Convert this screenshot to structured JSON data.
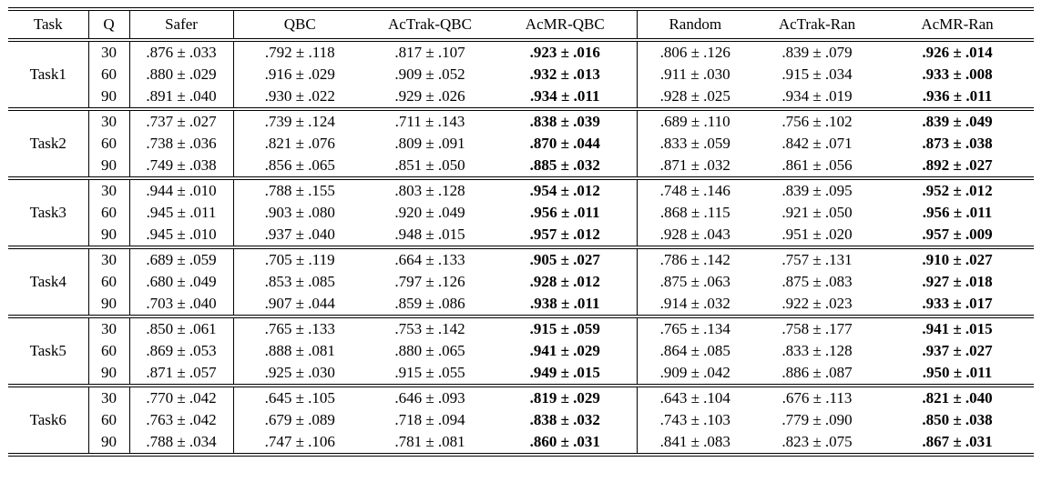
{
  "table": {
    "columns": [
      "Task",
      "Q",
      "Safer",
      "QBC",
      "AcTrak-QBC",
      "AcMR-QBC",
      "Random",
      "AcTrak-Ran",
      "AcMR-Ran"
    ],
    "bold_columns": [
      "AcMR-QBC",
      "AcMR-Ran"
    ],
    "text_color": "#000000",
    "rule_color": "#000000",
    "groups": [
      {
        "task": "Task1",
        "rows": [
          [
            "30",
            ".876 ± .033",
            ".792 ± .118",
            ".817 ± .107",
            ".923 ± .016",
            ".806 ± .126",
            ".839 ± .079",
            ".926 ± .014"
          ],
          [
            "60",
            ".880 ± .029",
            ".916 ± .029",
            ".909 ± .052",
            ".932 ± .013",
            ".911 ± .030",
            ".915 ± .034",
            ".933 ± .008"
          ],
          [
            "90",
            ".891 ± .040",
            ".930 ± .022",
            ".929 ± .026",
            ".934 ± .011",
            ".928 ± .025",
            ".934 ± .019",
            ".936 ± .011"
          ]
        ]
      },
      {
        "task": "Task2",
        "rows": [
          [
            "30",
            ".737 ± .027",
            ".739 ± .124",
            ".711 ± .143",
            ".838 ± .039",
            ".689 ± .110",
            ".756 ± .102",
            ".839 ± .049"
          ],
          [
            "60",
            ".738 ± .036",
            ".821 ± .076",
            ".809 ± .091",
            ".870 ± .044",
            ".833 ± .059",
            ".842 ± .071",
            ".873 ± .038"
          ],
          [
            "90",
            ".749 ± .038",
            ".856 ± .065",
            ".851 ± .050",
            ".885 ± .032",
            ".871 ± .032",
            ".861 ± .056",
            ".892 ± .027"
          ]
        ]
      },
      {
        "task": "Task3",
        "rows": [
          [
            "30",
            ".944 ± .010",
            ".788 ± .155",
            ".803 ± .128",
            ".954 ± .012",
            ".748 ± .146",
            ".839 ± .095",
            ".952 ± .012"
          ],
          [
            "60",
            ".945 ± .011",
            ".903 ± .080",
            ".920 ± .049",
            ".956 ± .011",
            ".868 ± .115",
            ".921 ± .050",
            ".956 ± .011"
          ],
          [
            "90",
            ".945 ± .010",
            ".937 ± .040",
            ".948 ± .015",
            ".957 ± .012",
            ".928 ± .043",
            ".951 ± .020",
            ".957 ± .009"
          ]
        ]
      },
      {
        "task": "Task4",
        "rows": [
          [
            "30",
            ".689 ± .059",
            ".705 ± .119",
            ".664 ± .133",
            ".905 ± .027",
            ".786 ± .142",
            ".757 ± .131",
            ".910 ± .027"
          ],
          [
            "60",
            ".680 ± .049",
            ".853 ± .085",
            ".797 ± .126",
            ".928 ± .012",
            ".875 ± .063",
            ".875 ± .083",
            ".927 ± .018"
          ],
          [
            "90",
            ".703 ± .040",
            ".907 ± .044",
            ".859 ± .086",
            ".938 ± .011",
            ".914 ± .032",
            ".922 ± .023",
            ".933 ± .017"
          ]
        ]
      },
      {
        "task": "Task5",
        "rows": [
          [
            "30",
            ".850 ± .061",
            ".765 ± .133",
            ".753 ± .142",
            ".915 ± .059",
            ".765 ± .134",
            ".758 ± .177",
            ".941 ± .015"
          ],
          [
            "60",
            ".869 ± .053",
            ".888 ± .081",
            ".880 ± .065",
            ".941 ± .029",
            ".864 ± .085",
            ".833 ± .128",
            ".937 ± .027"
          ],
          [
            "90",
            ".871 ± .057",
            ".925 ± .030",
            ".915 ± .055",
            ".949 ± .015",
            ".909 ± .042",
            ".886 ± .087",
            ".950 ± .011"
          ]
        ]
      },
      {
        "task": "Task6",
        "rows": [
          [
            "30",
            ".770 ± .042",
            ".645 ± .105",
            ".646 ± .093",
            ".819 ± .029",
            ".643 ± .104",
            ".676 ± .113",
            ".821 ± .040"
          ],
          [
            "60",
            ".763 ± .042",
            ".679 ± .089",
            ".718 ± .094",
            ".838 ± .032",
            ".743 ± .103",
            ".779 ± .090",
            ".850 ± .038"
          ],
          [
            "90",
            ".788 ± .034",
            ".747 ± .106",
            ".781 ± .081",
            ".860 ± .031",
            ".841 ± .083",
            ".823 ± .075",
            ".867 ± .031"
          ]
        ]
      }
    ]
  }
}
